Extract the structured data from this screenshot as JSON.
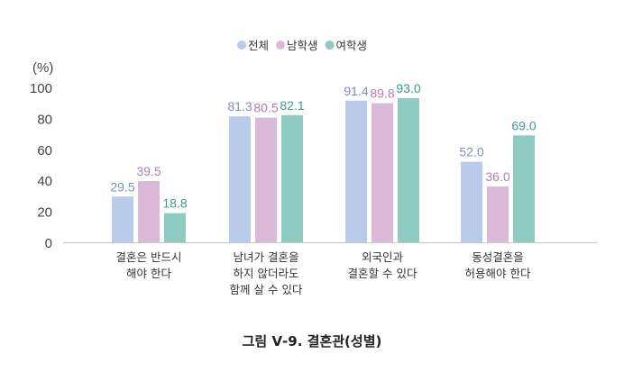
{
  "chart_data": {
    "type": "bar",
    "title": "그림 Ⅴ-9. 결혼관(성별)",
    "ylabel": "(%)",
    "ylim": [
      0,
      100
    ],
    "yticks": [
      0,
      20,
      40,
      60,
      80,
      100
    ],
    "grid": false,
    "legend_position": "top",
    "categories": [
      [
        "결혼은 반드시",
        "해야 한다"
      ],
      [
        "남녀가 결혼을",
        "하지 않더라도",
        "함께 살 수 있다"
      ],
      [
        "외국인과",
        "결혼할 수 있다"
      ],
      [
        "동성결혼을",
        "허용해야 한다"
      ]
    ],
    "series": [
      {
        "name": "전체",
        "values": [
          29.5,
          81.3,
          91.4,
          52.0
        ],
        "color": "#b8cbe9",
        "label_color": "#7f8fbb"
      },
      {
        "name": "남학생",
        "values": [
          39.5,
          80.5,
          89.8,
          36.0
        ],
        "color": "#dbbad9",
        "label_color": "#b27db0"
      },
      {
        "name": "여학생",
        "values": [
          18.8,
          82.1,
          93.0,
          69.0
        ],
        "color": "#8ecbc0",
        "label_color": "#3c9a92"
      }
    ]
  }
}
